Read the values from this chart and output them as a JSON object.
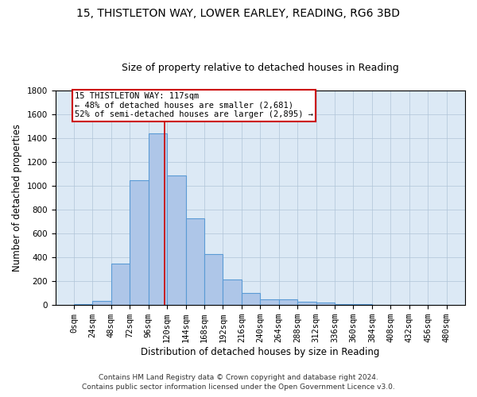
{
  "title1": "15, THISTLETON WAY, LOWER EARLEY, READING, RG6 3BD",
  "title2": "Size of property relative to detached houses in Reading",
  "xlabel": "Distribution of detached houses by size in Reading",
  "ylabel": "Number of detached properties",
  "footnote1": "Contains HM Land Registry data © Crown copyright and database right 2024.",
  "footnote2": "Contains public sector information licensed under the Open Government Licence v3.0.",
  "annotation_line1": "15 THISTLETON WAY: 117sqm",
  "annotation_line2": "← 48% of detached houses are smaller (2,681)",
  "annotation_line3": "52% of semi-detached houses are larger (2,895) →",
  "property_size": 117,
  "bin_edges": [
    0,
    24,
    48,
    72,
    96,
    120,
    144,
    168,
    192,
    216,
    240,
    264,
    288,
    312,
    336,
    360,
    384,
    408,
    432,
    456,
    480
  ],
  "bar_heights": [
    10,
    35,
    350,
    1050,
    1440,
    1090,
    725,
    430,
    215,
    100,
    50,
    45,
    30,
    20,
    10,
    5,
    3,
    2,
    1,
    1
  ],
  "bar_color": "#aec6e8",
  "bar_edge_color": "#5b9bd5",
  "bar_linewidth": 0.8,
  "vline_color": "#cc0000",
  "vline_x": 117,
  "annotation_box_color": "#cc0000",
  "background_color": "#ffffff",
  "axes_facecolor": "#dce9f5",
  "grid_color": "#b0c4d8",
  "ylim": [
    0,
    1800
  ],
  "yticks": [
    0,
    200,
    400,
    600,
    800,
    1000,
    1200,
    1400,
    1600,
    1800
  ],
  "title1_fontsize": 10,
  "title2_fontsize": 9,
  "xlabel_fontsize": 8.5,
  "ylabel_fontsize": 8.5,
  "tick_fontsize": 7.5,
  "annotation_fontsize": 7.5,
  "footnote_fontsize": 6.5
}
